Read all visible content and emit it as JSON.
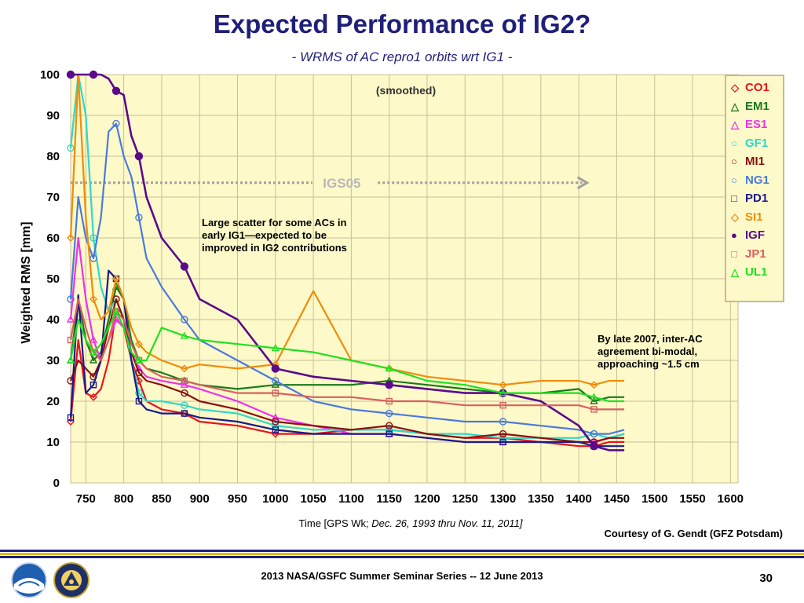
{
  "slide": {
    "title": "Expected Performance of IG2?",
    "subtitle": "- WRMS of AC repro1 orbits wrt IG1 -",
    "note_scatter": "Large scatter for some ACs in early IG1—expected to be improved in IG2 contributions",
    "note_bimodal": "By late 2007, inter-AC agreement bi-modal, approaching ~1.5 cm",
    "xcaption_prefix": "Time   [GPS Wk; ",
    "xcaption_range": "Dec. 26, 1993 thru Nov. 11, 2011]",
    "courtesy": "Courtesy of G. Gendt (GFZ Potsdam)",
    "footer": "2013 NASA/GSFC Summer Seminar Series -- 12 June 2013",
    "page_number": "30"
  },
  "chart_data": {
    "type": "line",
    "title": "(smoothed)",
    "xlabel": "",
    "ylabel": "Weighted RMS [mm]",
    "xlim": [
      730,
      1610
    ],
    "ylim": [
      0,
      100
    ],
    "xticks": [
      750,
      800,
      850,
      900,
      950,
      1000,
      1050,
      1100,
      1150,
      1200,
      1250,
      1300,
      1350,
      1400,
      1450,
      1500,
      1550,
      1600
    ],
    "yticks": [
      0,
      10,
      20,
      30,
      40,
      50,
      60,
      70,
      80,
      90,
      100
    ],
    "grid": true,
    "background": "#fdf9c9",
    "legend_position": "right",
    "annotation": {
      "text": "IGS05",
      "y": 73.5,
      "x_range": [
        730,
        1415
      ],
      "color": "#a0a0a0"
    },
    "series": [
      {
        "name": "CO1",
        "color": "#e8131e",
        "marker": "diamond",
        "x": [
          730,
          740,
          750,
          760,
          770,
          780,
          790,
          800,
          810,
          820,
          830,
          850,
          880,
          900,
          950,
          1000,
          1050,
          1100,
          1150,
          1200,
          1250,
          1300,
          1350,
          1400,
          1420,
          1440,
          1460
        ],
        "y": [
          15,
          35,
          22,
          21,
          23,
          30,
          42,
          38,
          30,
          25,
          20,
          18,
          17,
          15,
          14,
          12,
          12,
          13,
          13,
          12,
          11,
          11,
          10,
          9,
          9,
          10,
          10
        ]
      },
      {
        "name": "EM1",
        "color": "#1a7a1a",
        "marker": "triangle",
        "x": [
          730,
          740,
          750,
          760,
          770,
          780,
          790,
          800,
          810,
          820,
          830,
          850,
          880,
          900,
          950,
          1000,
          1050,
          1100,
          1150,
          1200,
          1250,
          1300,
          1350,
          1400,
          1420,
          1440,
          1460
        ],
        "y": [
          30,
          45,
          35,
          30,
          32,
          40,
          48,
          45,
          35,
          30,
          28,
          27,
          25,
          24,
          23,
          24,
          24,
          24,
          25,
          24,
          23,
          22,
          22,
          23,
          20,
          21,
          21
        ]
      },
      {
        "name": "ES1",
        "color": "#f030f0",
        "marker": "triangle",
        "x": [
          730,
          740,
          750,
          760,
          770,
          780,
          790,
          800,
          810,
          820,
          830,
          850,
          880,
          900,
          950,
          1000,
          1050,
          1100,
          1150,
          1200,
          1250,
          1300,
          1350,
          1400,
          1420,
          1440,
          1460
        ],
        "y": [
          40,
          60,
          45,
          35,
          30,
          35,
          40,
          38,
          32,
          28,
          26,
          25,
          24,
          23,
          20,
          16,
          14,
          12,
          12,
          11,
          10,
          10,
          10,
          10,
          10,
          11,
          12
        ]
      },
      {
        "name": "GF1",
        "color": "#30d8c8",
        "marker": "circle",
        "x": [
          730,
          740,
          750,
          760,
          770,
          780,
          790,
          800,
          810,
          820,
          830,
          850,
          880,
          900,
          950,
          1000,
          1050,
          1100,
          1150,
          1200,
          1250,
          1300,
          1350,
          1400,
          1420,
          1440,
          1460
        ],
        "y": [
          82,
          100,
          90,
          60,
          48,
          42,
          45,
          40,
          30,
          22,
          20,
          20,
          19,
          18,
          17,
          14,
          13,
          13,
          13,
          12,
          12,
          11,
          11,
          11,
          12,
          11,
          12
        ]
      },
      {
        "name": "MI1",
        "color": "#8a1010",
        "marker": "circle",
        "x": [
          730,
          740,
          750,
          760,
          770,
          780,
          790,
          800,
          810,
          820,
          830,
          850,
          880,
          900,
          950,
          1000,
          1050,
          1100,
          1150,
          1200,
          1250,
          1300,
          1350,
          1400,
          1420,
          1440,
          1460
        ],
        "y": [
          25,
          30,
          28,
          26,
          30,
          38,
          45,
          40,
          32,
          27,
          25,
          24,
          22,
          20,
          18,
          15,
          14,
          13,
          14,
          12,
          11,
          12,
          11,
          10,
          10,
          11,
          11
        ]
      },
      {
        "name": "NG1",
        "color": "#4a7adc",
        "marker": "circle",
        "x": [
          730,
          740,
          750,
          760,
          770,
          780,
          790,
          800,
          810,
          820,
          830,
          850,
          880,
          900,
          950,
          1000,
          1050,
          1100,
          1150,
          1200,
          1250,
          1300,
          1350,
          1400,
          1420,
          1440,
          1460
        ],
        "y": [
          45,
          70,
          60,
          55,
          65,
          86,
          88,
          80,
          75,
          65,
          55,
          48,
          40,
          35,
          30,
          25,
          20,
          18,
          17,
          16,
          15,
          15,
          14,
          13,
          12,
          12,
          13
        ]
      },
      {
        "name": "PD1",
        "color": "#1a1a8a",
        "marker": "square",
        "x": [
          730,
          740,
          750,
          760,
          770,
          780,
          790,
          800,
          810,
          820,
          830,
          850,
          880,
          900,
          950,
          1000,
          1050,
          1100,
          1150,
          1200,
          1250,
          1300,
          1350,
          1400,
          1420,
          1440,
          1460
        ],
        "y": [
          16,
          46,
          22,
          24,
          30,
          52,
          50,
          45,
          30,
          20,
          18,
          17,
          17,
          16,
          15,
          13,
          12,
          12,
          12,
          11,
          10,
          10,
          10,
          10,
          9,
          9,
          9
        ]
      },
      {
        "name": "SI1",
        "color": "#f08c0a",
        "marker": "diamond",
        "x": [
          730,
          740,
          750,
          760,
          770,
          780,
          790,
          800,
          810,
          820,
          830,
          850,
          880,
          900,
          950,
          1000,
          1050,
          1100,
          1150,
          1200,
          1250,
          1300,
          1350,
          1400,
          1420,
          1440,
          1460
        ],
        "y": [
          60,
          100,
          65,
          45,
          40,
          42,
          50,
          45,
          38,
          34,
          32,
          30,
          28,
          29,
          28,
          29,
          47,
          30,
          28,
          26,
          25,
          24,
          25,
          25,
          24,
          25,
          25
        ]
      },
      {
        "name": "IGF",
        "color": "#5a0a8a",
        "marker": "circle-filled",
        "x": [
          730,
          740,
          750,
          760,
          770,
          780,
          790,
          800,
          810,
          820,
          830,
          850,
          880,
          900,
          950,
          1000,
          1050,
          1100,
          1150,
          1200,
          1250,
          1300,
          1350,
          1400,
          1420,
          1440,
          1460
        ],
        "y": [
          100,
          100,
          100,
          100,
          100,
          99,
          96,
          95,
          85,
          80,
          70,
          60,
          53,
          45,
          40,
          28,
          26,
          25,
          24,
          23,
          22,
          22,
          20,
          14,
          9,
          8,
          8
        ]
      },
      {
        "name": "JP1",
        "color": "#d86060",
        "marker": "square",
        "x": [
          730,
          740,
          750,
          760,
          770,
          780,
          790,
          800,
          810,
          820,
          830,
          850,
          880,
          900,
          950,
          1000,
          1050,
          1100,
          1150,
          1200,
          1250,
          1300,
          1350,
          1400,
          1420,
          1440,
          1460
        ],
        "y": [
          35,
          45,
          38,
          32,
          30,
          35,
          42,
          40,
          34,
          30,
          28,
          26,
          25,
          24,
          22,
          22,
          21,
          21,
          20,
          20,
          19,
          19,
          19,
          19,
          18,
          18,
          18
        ]
      },
      {
        "name": "UL1",
        "color": "#20e020",
        "marker": "triangle",
        "x": [
          730,
          740,
          750,
          760,
          770,
          780,
          790,
          800,
          810,
          820,
          830,
          850,
          880,
          900,
          950,
          1000,
          1050,
          1100,
          1150,
          1200,
          1250,
          1300,
          1350,
          1400,
          1420,
          1440,
          1460
        ],
        "y": [
          30,
          40,
          35,
          32,
          34,
          38,
          42,
          38,
          32,
          30,
          30,
          38,
          36,
          35,
          34,
          33,
          32,
          30,
          28,
          25,
          24,
          22,
          22,
          22,
          21,
          20,
          20
        ]
      }
    ]
  }
}
